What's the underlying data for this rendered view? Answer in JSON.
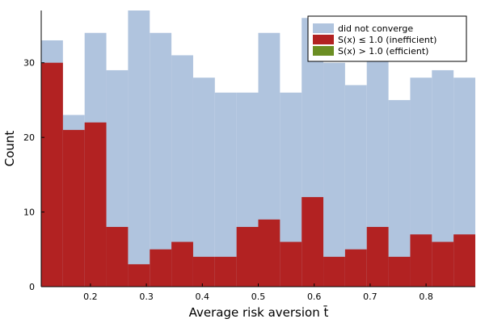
{
  "chart_data": {
    "type": "bar",
    "subtype": "stacked-histogram",
    "xlabel": "Average risk aversion t̄",
    "ylabel": "Count",
    "xlim": [
      0.112,
      0.888
    ],
    "ylim": [
      0,
      37
    ],
    "grid": false,
    "legend_position": "top-right",
    "x_ticks": [
      0.2,
      0.3,
      0.4,
      0.5,
      0.6,
      0.7,
      0.8
    ],
    "y_ticks": [
      0,
      10,
      20,
      30
    ],
    "bin_width": 0.0388,
    "bin_edges": [
      0.112,
      0.1508,
      0.1896,
      0.2284,
      0.2672,
      0.306,
      0.3448,
      0.3836,
      0.4224,
      0.4612,
      0.5,
      0.5388,
      0.5776,
      0.6164,
      0.6552,
      0.694,
      0.7328,
      0.7716,
      0.8104,
      0.8492,
      0.888
    ],
    "series": [
      {
        "name": "did not converge",
        "color": "#b0c4de",
        "values": [
          33,
          23,
          34,
          29,
          37,
          34,
          31,
          28,
          26,
          26,
          34,
          26,
          36,
          30,
          27,
          36,
          25,
          28,
          29,
          28
        ]
      },
      {
        "name": "S(x) ≤ 1.0 (inefficient)",
        "color": "#b22222",
        "values": [
          30,
          21,
          22,
          8,
          3,
          5,
          6,
          4,
          4,
          8,
          9,
          6,
          12,
          4,
          5,
          8,
          4,
          7,
          6,
          7
        ]
      },
      {
        "name": "S(x) > 1.0 (efficient)",
        "color": "#6b8e23",
        "values": [
          0,
          0,
          0,
          0,
          0,
          0,
          0,
          0,
          0,
          0,
          0,
          0,
          0,
          0,
          0,
          0,
          0,
          0,
          0,
          0
        ]
      }
    ]
  }
}
